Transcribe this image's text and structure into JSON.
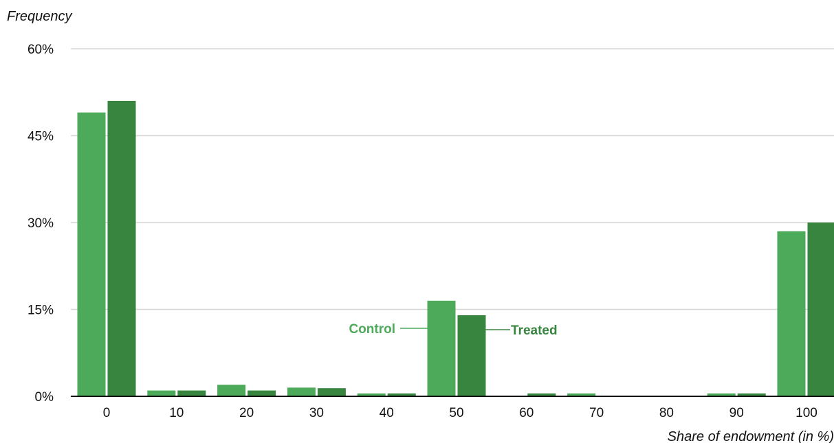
{
  "chart_data": {
    "type": "bar",
    "ylabel": "Frequency",
    "xlabel": "Share of endowment (in %)",
    "categories": [
      "0",
      "10",
      "20",
      "30",
      "40",
      "50",
      "60",
      "70",
      "80",
      "90",
      "100"
    ],
    "y_ticks": [
      "0%",
      "15%",
      "30%",
      "45%",
      "60%"
    ],
    "ylim": [
      0,
      60
    ],
    "y_unit": "%",
    "grid": true,
    "series": [
      {
        "name": "Control",
        "color": "#4caa5a",
        "values": [
          49,
          1,
          2,
          1.5,
          0.5,
          16.5,
          0,
          0.5,
          0,
          0.5,
          28.5
        ]
      },
      {
        "name": "Treated",
        "color": "#38853f",
        "values": [
          51,
          1,
          1,
          1.4,
          0.5,
          14,
          0.5,
          0,
          0,
          0.5,
          30
        ]
      }
    ]
  }
}
